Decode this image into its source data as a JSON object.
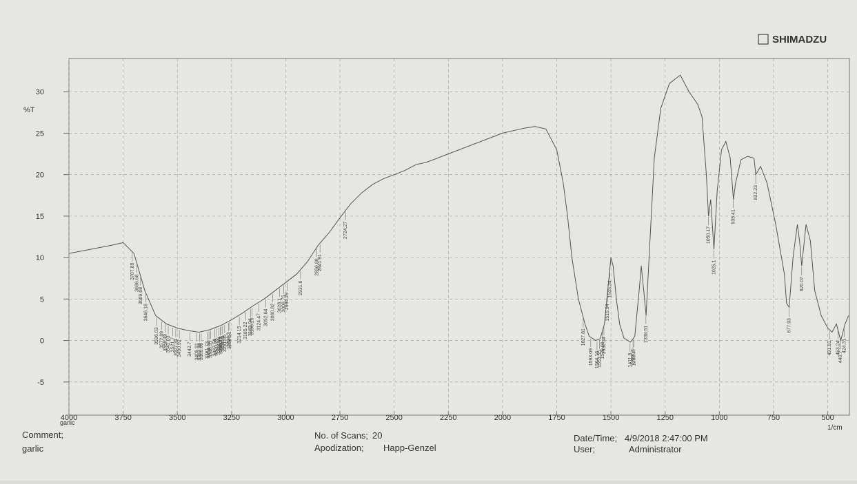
{
  "brand": "SHIMADZU",
  "chart_data": {
    "type": "line",
    "ylabel": "%T",
    "xlabel": "1/cm",
    "sample_label": "garlic",
    "xlim": [
      4000,
      400
    ],
    "ylim": [
      -9,
      34
    ],
    "xticks": [
      4000,
      3750,
      3500,
      3250,
      3000,
      2750,
      2500,
      2250,
      2000,
      1750,
      1500,
      1250,
      1000,
      750,
      500
    ],
    "yticks": [
      -5,
      0,
      5,
      10,
      15,
      20,
      25,
      30
    ],
    "grid": true,
    "x": [
      4000,
      3900,
      3800,
      3750,
      3700,
      3650,
      3600,
      3550,
      3500,
      3450,
      3400,
      3350,
      3300,
      3250,
      3200,
      3150,
      3100,
      3050,
      3000,
      2950,
      2900,
      2850,
      2800,
      2750,
      2700,
      2650,
      2600,
      2550,
      2500,
      2450,
      2400,
      2350,
      2300,
      2250,
      2200,
      2100,
      2000,
      1900,
      1850,
      1800,
      1750,
      1720,
      1700,
      1680,
      1650,
      1620,
      1600,
      1570,
      1550,
      1530,
      1515,
      1500,
      1490,
      1475,
      1460,
      1440,
      1410,
      1390,
      1370,
      1360,
      1345,
      1338,
      1320,
      1300,
      1270,
      1230,
      1180,
      1140,
      1100,
      1080,
      1060,
      1050,
      1040,
      1025,
      1010,
      990,
      970,
      950,
      935,
      925,
      900,
      870,
      840,
      832,
      810,
      780,
      740,
      700,
      690,
      678,
      660,
      640,
      630,
      620,
      600,
      580,
      560,
      530,
      500,
      480,
      460,
      440,
      420,
      404
    ],
    "series": [
      {
        "color": "#555555",
        "values": [
          10.5,
          11,
          11.5,
          11.8,
          10.5,
          6,
          3,
          2,
          1.5,
          1.2,
          1.0,
          1.3,
          1.8,
          2.5,
          3.3,
          4.2,
          5,
          6,
          7,
          8,
          9.5,
          11.5,
          13,
          14.8,
          16.5,
          17.8,
          18.8,
          19.5,
          20,
          20.5,
          21.2,
          21.5,
          22,
          22.5,
          23,
          24,
          25,
          25.6,
          25.8,
          25.5,
          23,
          19,
          15,
          10,
          5,
          2,
          0.5,
          0,
          0.2,
          2,
          6,
          10,
          9,
          5,
          2,
          0.3,
          -0.2,
          0.5,
          6,
          9,
          5,
          3,
          12,
          22,
          28,
          31,
          32,
          30,
          28.5,
          27,
          20,
          15,
          17,
          11,
          18,
          23,
          24,
          22,
          17,
          19,
          21.8,
          22.2,
          22,
          20,
          21,
          19,
          14,
          8,
          4.5,
          4,
          10,
          14,
          12,
          9,
          14,
          12,
          6,
          3,
          1.5,
          1,
          2,
          0,
          2,
          3
        ]
      }
    ],
    "peaks": [
      3707.89,
      3686.68,
      3669.68,
      3646.18,
      3596.03,
      3572.89,
      3556.49,
      3542.03,
      3521.7,
      3507.31,
      3490.92,
      3442.7,
      3409.91,
      3397.38,
      3389.66,
      3361.73,
      3354.04,
      3346.31,
      3327.54,
      3320.23,
      3308.66,
      3300.8,
      3298.12,
      3291.3,
      3281.65,
      3264.3,
      3258.51,
      3214.15,
      3185.22,
      3163.04,
      3156.29,
      3124.47,
      3092.64,
      3060.82,
      3028.1,
      3008.75,
      2994.29,
      2931.6,
      2856.88,
      2841.91,
      2724.27,
      1627.81,
      1593.09,
      1564.16,
      1553.55,
      1539.09,
      1532.34,
      1515.94,
      1505.34,
      1411.8,
      1398.3,
      1393.47,
      1338.51,
      1050.17,
      1025.1,
      935.41,
      832.23,
      677.93,
      620.07,
      491.81,
      453.24,
      440.7,
      424.31
    ]
  },
  "footer": {
    "comment": {
      "label": "Comment;",
      "value": "garlic"
    },
    "scans": {
      "label": "No. of Scans;",
      "value": "20"
    },
    "apodization": {
      "label": "Apodization;",
      "value": "Happ-Genzel"
    },
    "datetime": {
      "label": "Date/Time;",
      "value": "4/9/2018 2:47:00 PM"
    },
    "user": {
      "label": "User;",
      "value": "Administrator"
    }
  }
}
